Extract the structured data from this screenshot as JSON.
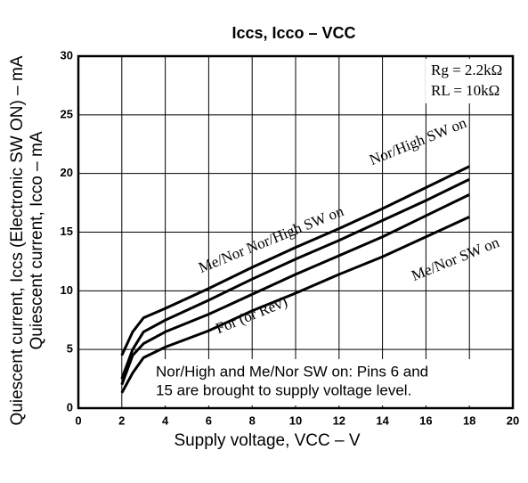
{
  "chart_data": {
    "type": "line",
    "title": "Iccs, Icco – VCC",
    "xlabel": "Supply voltage, VCC – V",
    "ylabel": [
      "Quiescent current, Iccs (Electronic SW ON) – mA",
      "Quiescent current, Icco – mA"
    ],
    "xlim": [
      0,
      20
    ],
    "xticks": [
      0,
      2,
      4,
      6,
      8,
      10,
      12,
      14,
      16,
      18,
      20
    ],
    "ylim": [
      0,
      30
    ],
    "yticks": [
      0,
      5,
      10,
      15,
      20,
      25,
      30
    ],
    "grid": true,
    "x": [
      2,
      2.5,
      3,
      4,
      6,
      8,
      10,
      12,
      14,
      16,
      18
    ],
    "series": [
      {
        "name": "Nor/High SW on",
        "color": "#000000",
        "values": [
          4.5,
          6.5,
          7.7,
          8.5,
          10.2,
          12,
          13.7,
          15.3,
          17,
          18.8,
          20.6
        ]
      },
      {
        "name": "Me/Nor Nor/High SW on",
        "color": "#000000",
        "values": [
          2.5,
          5,
          6.5,
          7.5,
          9.2,
          11,
          12.7,
          14.3,
          16,
          17.7,
          19.5
        ]
      },
      {
        "name": "Me/Nor SW on",
        "color": "#000000",
        "values": [
          2,
          4.5,
          5.5,
          6.5,
          8,
          9.7,
          11.4,
          13,
          14.6,
          16.4,
          18.2
        ]
      },
      {
        "name": "For (or Rev)",
        "color": "#000000",
        "values": [
          1.3,
          3,
          4.3,
          5.2,
          6.6,
          8.3,
          9.8,
          11.4,
          12.9,
          14.6,
          16.3
        ]
      }
    ],
    "annotations": [
      "Rg = 2.2kΩ",
      "RL = 10kΩ",
      "Nor/High and Me/Nor SW on: Pins 6 and",
      "15 are brought to supply voltage level."
    ]
  }
}
